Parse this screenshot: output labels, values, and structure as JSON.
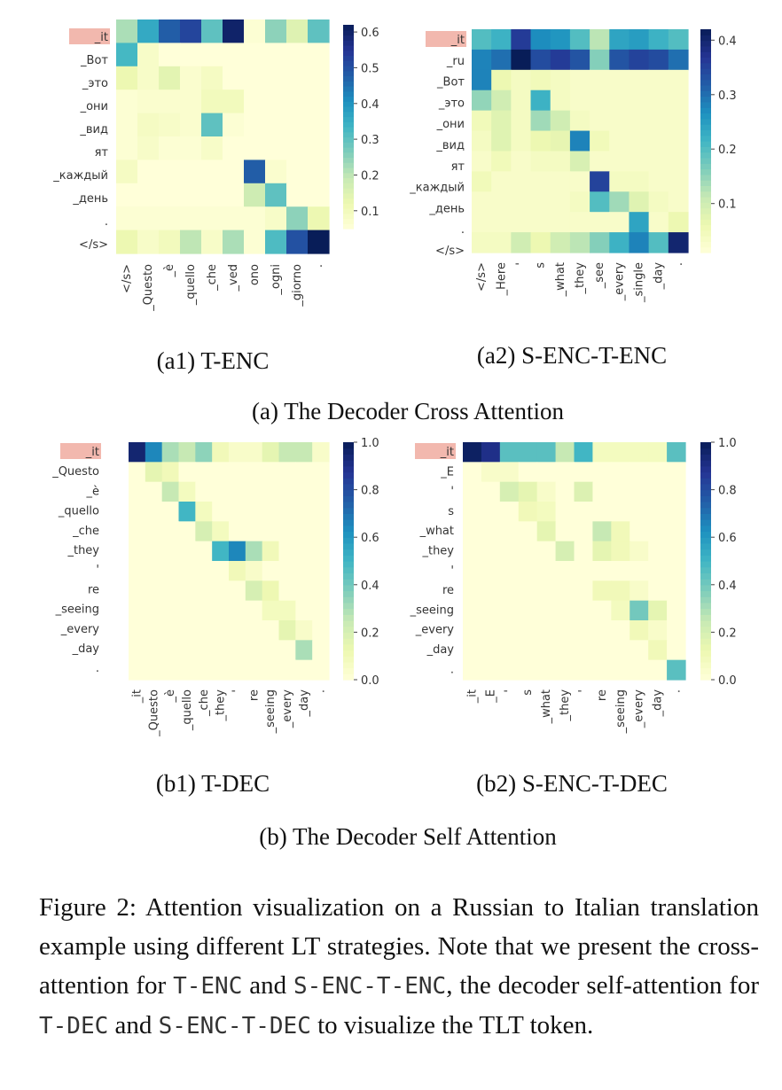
{
  "figure_number": "Figure 2:",
  "chart_data": [
    {
      "type": "heatmap",
      "panel": "(a1) T-ENC",
      "highlighted_row": "_it",
      "rows": [
        "_it",
        "_Вот",
        "_это",
        "_они",
        "_вид",
        "ят",
        "_каждый",
        "_день",
        ".",
        "</s>"
      ],
      "columns": [
        "</s>",
        "_Questo",
        "_è",
        "_quello",
        "_che",
        "_ved",
        "ono",
        "_ogni",
        "_giorno",
        "."
      ],
      "colorbar": {
        "min": 0.05,
        "max": 0.62,
        "ticks": [
          0.1,
          0.2,
          0.3,
          0.4,
          0.5,
          0.6
        ],
        "tick_labels": [
          "0.1",
          "0.2",
          "0.3",
          "0.4",
          "0.5",
          "0.6"
        ]
      },
      "values": [
        [
          0.22,
          0.36,
          0.48,
          0.52,
          0.3,
          0.6,
          0.06,
          0.25,
          0.15,
          0.3
        ],
        [
          0.33,
          0.08,
          0.05,
          0.05,
          0.05,
          0.05,
          0.05,
          0.05,
          0.05,
          0.05
        ],
        [
          0.12,
          0.08,
          0.14,
          0.07,
          0.09,
          0.05,
          0.05,
          0.05,
          0.05,
          0.05
        ],
        [
          0.06,
          0.07,
          0.07,
          0.07,
          0.1,
          0.1,
          0.05,
          0.05,
          0.05,
          0.05
        ],
        [
          0.06,
          0.09,
          0.08,
          0.07,
          0.3,
          0.06,
          0.05,
          0.05,
          0.05,
          0.05
        ],
        [
          0.06,
          0.08,
          0.06,
          0.06,
          0.08,
          0.05,
          0.05,
          0.05,
          0.05,
          0.05
        ],
        [
          0.09,
          0.05,
          0.05,
          0.05,
          0.05,
          0.05,
          0.48,
          0.07,
          0.05,
          0.05
        ],
        [
          0.05,
          0.05,
          0.05,
          0.05,
          0.05,
          0.05,
          0.18,
          0.3,
          0.05,
          0.05
        ],
        [
          0.06,
          0.06,
          0.06,
          0.06,
          0.06,
          0.06,
          0.06,
          0.08,
          0.25,
          0.12
        ],
        [
          0.12,
          0.08,
          0.1,
          0.2,
          0.08,
          0.22,
          0.06,
          0.32,
          0.5,
          0.62
        ]
      ]
    },
    {
      "type": "heatmap",
      "panel": "(a2) S-ENC-T-ENC",
      "highlighted_row": "_it",
      "rows": [
        "_it",
        "_ru",
        "_Вот",
        "_это",
        "_они",
        "_вид",
        "ят",
        "_каждый",
        "_день",
        ".",
        "</s>"
      ],
      "columns": [
        "</s>",
        "_Here",
        "'",
        "s",
        "_what",
        "_they",
        "_see",
        "_every",
        "_single",
        "_day",
        "."
      ],
      "colorbar": {
        "min": 0.01,
        "max": 0.42,
        "ticks": [
          0.1,
          0.2,
          0.3,
          0.4
        ],
        "tick_labels": [
          "0.1",
          "0.2",
          "0.3",
          "0.4"
        ]
      },
      "values": [
        [
          0.2,
          0.22,
          0.36,
          0.27,
          0.26,
          0.2,
          0.12,
          0.24,
          0.25,
          0.22,
          0.2
        ],
        [
          0.28,
          0.3,
          0.42,
          0.34,
          0.36,
          0.33,
          0.16,
          0.33,
          0.35,
          0.34,
          0.3
        ],
        [
          0.28,
          0.06,
          0.04,
          0.05,
          0.04,
          0.03,
          0.03,
          0.03,
          0.03,
          0.03,
          0.03
        ],
        [
          0.15,
          0.1,
          0.04,
          0.22,
          0.04,
          0.03,
          0.03,
          0.03,
          0.03,
          0.03,
          0.03
        ],
        [
          0.05,
          0.08,
          0.04,
          0.14,
          0.1,
          0.04,
          0.03,
          0.03,
          0.03,
          0.03,
          0.03
        ],
        [
          0.04,
          0.08,
          0.04,
          0.06,
          0.07,
          0.28,
          0.05,
          0.03,
          0.03,
          0.03,
          0.03
        ],
        [
          0.03,
          0.05,
          0.03,
          0.04,
          0.04,
          0.09,
          0.03,
          0.03,
          0.03,
          0.03,
          0.03
        ],
        [
          0.05,
          0.03,
          0.03,
          0.03,
          0.03,
          0.03,
          0.35,
          0.04,
          0.04,
          0.03,
          0.03
        ],
        [
          0.03,
          0.03,
          0.03,
          0.03,
          0.03,
          0.04,
          0.2,
          0.14,
          0.08,
          0.04,
          0.03
        ],
        [
          0.03,
          0.03,
          0.03,
          0.03,
          0.03,
          0.03,
          0.03,
          0.03,
          0.24,
          0.03,
          0.06
        ],
        [
          0.04,
          0.04,
          0.1,
          0.06,
          0.1,
          0.12,
          0.16,
          0.22,
          0.28,
          0.2,
          0.4
        ]
      ]
    },
    {
      "type": "heatmap",
      "panel": "(b1) T-DEC",
      "highlighted_row": "_it",
      "rows": [
        "_it",
        "_Questo",
        "_è",
        "_quello",
        "_che",
        "_they",
        "'",
        "re",
        "_seeing",
        "_every",
        "_day",
        "."
      ],
      "columns": [
        "_it",
        "_Questo",
        "_è",
        "_quello",
        "_che",
        "_they",
        "'",
        "re",
        "_seeing",
        "_every",
        "_day",
        "."
      ],
      "colorbar": {
        "min": 0.0,
        "max": 1.0,
        "ticks": [
          0.0,
          0.2,
          0.4,
          0.6,
          0.8,
          1.0
        ],
        "tick_labels": [
          "0.0",
          "0.2",
          "0.4",
          "0.6",
          "0.8",
          "1.0"
        ]
      },
      "values": [
        [
          0.95,
          0.65,
          0.3,
          0.25,
          0.35,
          0.1,
          0.05,
          0.05,
          0.15,
          0.25,
          0.25,
          0.05
        ],
        [
          0,
          0.15,
          0.1,
          0,
          0,
          0,
          0,
          0,
          0,
          0,
          0,
          0
        ],
        [
          0,
          0,
          0.25,
          0.08,
          0,
          0,
          0,
          0,
          0,
          0,
          0,
          0
        ],
        [
          0,
          0,
          0,
          0.5,
          0.08,
          0,
          0,
          0,
          0,
          0,
          0,
          0
        ],
        [
          0,
          0,
          0,
          0,
          0.2,
          0.08,
          0,
          0,
          0,
          0,
          0,
          0
        ],
        [
          0,
          0,
          0,
          0,
          0,
          0.5,
          0.65,
          0.3,
          0.1,
          0,
          0,
          0
        ],
        [
          0,
          0,
          0,
          0,
          0,
          0,
          0.1,
          0.05,
          0,
          0,
          0,
          0
        ],
        [
          0,
          0,
          0,
          0,
          0,
          0,
          0,
          0.2,
          0.12,
          0,
          0,
          0
        ],
        [
          0,
          0,
          0,
          0,
          0,
          0,
          0,
          0,
          0.08,
          0.08,
          0,
          0
        ],
        [
          0,
          0,
          0,
          0,
          0,
          0,
          0,
          0,
          0,
          0.15,
          0.05,
          0
        ],
        [
          0,
          0,
          0,
          0,
          0,
          0,
          0,
          0,
          0,
          0,
          0.3,
          0
        ],
        [
          0,
          0,
          0,
          0,
          0,
          0,
          0,
          0,
          0,
          0,
          0,
          0
        ]
      ]
    },
    {
      "type": "heatmap",
      "panel": "(b2) S-ENC-T-DEC",
      "highlighted_row": "_it",
      "rows": [
        "_it",
        "_E",
        "'",
        "s",
        "_what",
        "_they",
        "'",
        "re",
        "_seeing",
        "_every",
        "_day",
        "."
      ],
      "columns": [
        "_it",
        "_E",
        "'",
        "s",
        "_what",
        "_they",
        "'",
        "re",
        "_seeing",
        "_every",
        "_day",
        "."
      ],
      "colorbar": {
        "min": 0.0,
        "max": 1.0,
        "ticks": [
          0.0,
          0.2,
          0.4,
          0.6,
          0.8,
          1.0
        ],
        "tick_labels": [
          "0.0",
          "0.2",
          "0.4",
          "0.6",
          "0.8",
          "1.0"
        ]
      },
      "values": [
        [
          0.98,
          0.9,
          0.45,
          0.45,
          0.45,
          0.25,
          0.5,
          0.08,
          0.08,
          0.08,
          0.08,
          0.45
        ],
        [
          0,
          0.05,
          0.05,
          0,
          0,
          0,
          0,
          0,
          0,
          0,
          0,
          0
        ],
        [
          0,
          0,
          0.2,
          0.15,
          0.05,
          0,
          0.18,
          0,
          0,
          0,
          0,
          0
        ],
        [
          0,
          0,
          0,
          0.1,
          0.08,
          0,
          0,
          0,
          0,
          0,
          0,
          0
        ],
        [
          0,
          0,
          0,
          0,
          0.15,
          0,
          0,
          0.25,
          0.1,
          0,
          0,
          0
        ],
        [
          0,
          0,
          0,
          0,
          0,
          0.2,
          0,
          0.15,
          0.1,
          0.05,
          0,
          0
        ],
        [
          0,
          0,
          0,
          0,
          0,
          0,
          0,
          0,
          0,
          0,
          0,
          0
        ],
        [
          0,
          0,
          0,
          0,
          0,
          0,
          0,
          0.1,
          0.1,
          0.05,
          0,
          0
        ],
        [
          0,
          0,
          0,
          0,
          0,
          0,
          0,
          0,
          0.08,
          0.4,
          0.15,
          0
        ],
        [
          0,
          0,
          0,
          0,
          0,
          0,
          0,
          0,
          0,
          0.1,
          0.05,
          0
        ],
        [
          0,
          0,
          0,
          0,
          0,
          0,
          0,
          0,
          0,
          0,
          0.1,
          0
        ],
        [
          0,
          0,
          0,
          0,
          0,
          0,
          0,
          0,
          0,
          0,
          0,
          0.45
        ]
      ]
    }
  ],
  "group_captions": [
    "(a) The Decoder Cross Attention",
    "(b) The Decoder Self Attention"
  ],
  "caption": {
    "part1": "Attention visualization on a Russian to Italian translation example using different LT strategies. Note that we present the cross-attention for",
    "code1": "T-ENC",
    "and1": "and",
    "code2": "S-ENC-T-ENC",
    "part2": ", the decoder self-attention for",
    "code3": "T-DEC",
    "and2": "and",
    "code4": "S-ENC-T-DEC",
    "part3": "to visualize the TLT token."
  }
}
